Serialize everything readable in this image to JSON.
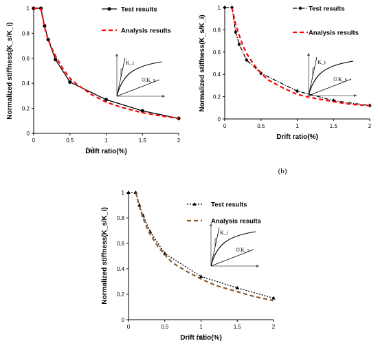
{
  "chart_data": [
    {
      "panel": "(a)",
      "type": "line",
      "xlabel": "Drift ratio(%)",
      "ylabel": "Normalized stiffness(K_s/K_i)",
      "xlim": [
        0,
        2
      ],
      "ylim": [
        0,
        1
      ],
      "xticks": [
        "0",
        "0.5",
        "1",
        "1.5",
        "2"
      ],
      "yticks": [
        "0",
        "0.2",
        "0.4",
        "0.6",
        "0.8",
        "1"
      ],
      "series": [
        {
          "name": "Test results",
          "color": "#000000",
          "style": "solid",
          "marker": "circle",
          "x": [
            0,
            0.1,
            0.15,
            0.2,
            0.3,
            0.5,
            1.0,
            1.5,
            2.0
          ],
          "y": [
            1.0,
            1.0,
            0.86,
            0.75,
            0.59,
            0.41,
            0.27,
            0.18,
            0.12
          ]
        },
        {
          "name": "Analysis results",
          "color": "#ff0000",
          "style": "dash",
          "marker": "none",
          "x": [
            0,
            0.1,
            0.15,
            0.2,
            0.25,
            0.3,
            0.4,
            0.5,
            0.6,
            0.8,
            1.0,
            1.2,
            1.5,
            1.75,
            2.0
          ],
          "y": [
            1.0,
            1.0,
            0.85,
            0.75,
            0.68,
            0.62,
            0.52,
            0.44,
            0.39,
            0.31,
            0.25,
            0.21,
            0.165,
            0.14,
            0.12
          ]
        }
      ],
      "inset": {
        "label_top": "K_i",
        "label_bottom": "K_s"
      }
    },
    {
      "panel": "(b)",
      "type": "line",
      "xlabel": "Drift ratio(%)",
      "ylabel": "Normalized stiffness(K_s/K_i)",
      "xlim": [
        0,
        2
      ],
      "ylim": [
        0,
        1
      ],
      "xticks": [
        "0",
        "0.5",
        "1",
        "1.5",
        "2"
      ],
      "yticks": [
        "0",
        "0.2",
        "0.4",
        "0.6",
        "0.8",
        "1"
      ],
      "series": [
        {
          "name": "Test results",
          "color": "#000000",
          "style": "dashdot",
          "marker": "diamond",
          "x": [
            0,
            0.1,
            0.15,
            0.2,
            0.3,
            0.5,
            1.0,
            1.5,
            2.0
          ],
          "y": [
            1.0,
            1.0,
            0.78,
            0.67,
            0.53,
            0.41,
            0.25,
            0.165,
            0.12
          ]
        },
        {
          "name": "Analysis results",
          "color": "#ff0000",
          "style": "dash",
          "marker": "none",
          "x": [
            0.1,
            0.15,
            0.2,
            0.25,
            0.3,
            0.4,
            0.5,
            0.6,
            0.8,
            1.0,
            1.2,
            1.5,
            1.75,
            2.0
          ],
          "y": [
            1.0,
            0.85,
            0.75,
            0.66,
            0.59,
            0.49,
            0.41,
            0.35,
            0.28,
            0.22,
            0.19,
            0.155,
            0.13,
            0.12
          ]
        }
      ],
      "inset": {
        "label_top": "K_i",
        "label_bottom": "K_s"
      }
    },
    {
      "panel": "(c)",
      "type": "line",
      "xlabel": "Drift ratio(%)",
      "ylabel": "Normalized stiffness(K_s/K_i)",
      "xlim": [
        0,
        2
      ],
      "ylim": [
        0,
        1
      ],
      "xticks": [
        "0",
        "0.5",
        "1",
        "1.5",
        "2"
      ],
      "yticks": [
        "0",
        "0.2",
        "0.4",
        "0.6",
        "0.8",
        "1"
      ],
      "series": [
        {
          "name": "Test results",
          "color": "#000000",
          "style": "dot",
          "marker": "triangle",
          "x": [
            0,
            0.1,
            0.15,
            0.2,
            0.3,
            0.5,
            1.0,
            1.5,
            2.0
          ],
          "y": [
            1.0,
            1.0,
            0.9,
            0.82,
            0.69,
            0.52,
            0.34,
            0.25,
            0.17
          ]
        },
        {
          "name": "Analysis results",
          "color": "#8b5a2b",
          "style": "dash",
          "marker": "none",
          "x": [
            0.1,
            0.15,
            0.2,
            0.25,
            0.3,
            0.4,
            0.5,
            0.6,
            0.8,
            1.0,
            1.2,
            1.5,
            1.75,
            2.0
          ],
          "y": [
            1.0,
            0.89,
            0.8,
            0.73,
            0.67,
            0.58,
            0.51,
            0.45,
            0.38,
            0.32,
            0.27,
            0.22,
            0.18,
            0.15
          ]
        }
      ],
      "inset": {
        "label_top": "K_i",
        "label_bottom": "K_s"
      }
    }
  ],
  "accent_colors": {
    "red_analysis": "#ff0000",
    "brown_analysis": "#8b5a2b",
    "test": "#000000"
  }
}
